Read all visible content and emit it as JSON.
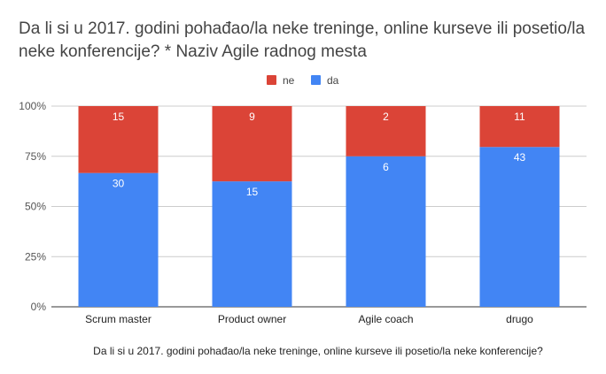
{
  "chart_data": {
    "type": "bar",
    "stacked": "percent",
    "title": "Da li si u 2017. godini pohađao/la neke treninge, online kurseve ili posetio/la neke konferencije? * Naziv Agile radnog mesta",
    "xlabel": "Da li si u 2017. godini pohađao/la neke treninge, online kurseve ili posetio/la neke konferencije?",
    "ylabel": "",
    "categories": [
      "Scrum master",
      "Product owner",
      "Agile coach",
      "drugo"
    ],
    "series": [
      {
        "name": "da",
        "color": "#4285f4",
        "values": [
          30,
          15,
          6,
          43
        ]
      },
      {
        "name": "ne",
        "color": "#db4437",
        "values": [
          15,
          9,
          2,
          11
        ]
      }
    ],
    "legend_order": [
      "ne",
      "da"
    ],
    "legend_position": "top",
    "y_ticks": [
      "0%",
      "25%",
      "50%",
      "75%",
      "100%"
    ],
    "ylim": [
      0,
      100
    ],
    "grid": true
  }
}
